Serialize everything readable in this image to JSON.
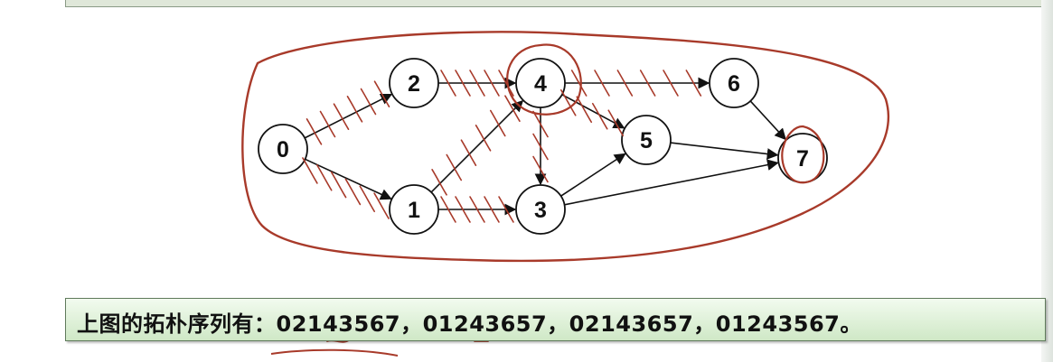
{
  "graph": {
    "nodes": [
      {
        "id": "0",
        "label": "0"
      },
      {
        "id": "1",
        "label": "1"
      },
      {
        "id": "2",
        "label": "2"
      },
      {
        "id": "3",
        "label": "3"
      },
      {
        "id": "4",
        "label": "4"
      },
      {
        "id": "5",
        "label": "5"
      },
      {
        "id": "6",
        "label": "6"
      },
      {
        "id": "7",
        "label": "7"
      }
    ],
    "edges": [
      {
        "from": "0",
        "to": "2"
      },
      {
        "from": "0",
        "to": "1"
      },
      {
        "from": "2",
        "to": "4"
      },
      {
        "from": "1",
        "to": "4"
      },
      {
        "from": "1",
        "to": "3"
      },
      {
        "from": "4",
        "to": "6"
      },
      {
        "from": "4",
        "to": "5"
      },
      {
        "from": "4",
        "to": "3"
      },
      {
        "from": "3",
        "to": "5"
      },
      {
        "from": "3",
        "to": "7"
      },
      {
        "from": "5",
        "to": "7"
      },
      {
        "from": "6",
        "to": "7"
      }
    ]
  },
  "caption": {
    "text": "上图的拓朴序列有：02143567，01243657，02143657，01243567。"
  },
  "colors": {
    "annotation": "#a83a2a",
    "caption_bg": "#d8efd1",
    "caption_border": "#5f7a5b"
  }
}
